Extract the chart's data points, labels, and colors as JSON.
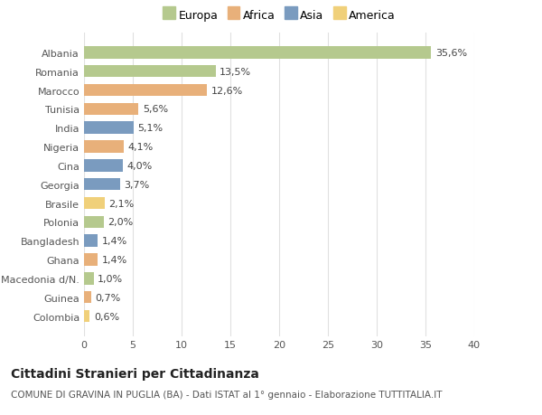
{
  "categories": [
    "Albania",
    "Romania",
    "Marocco",
    "Tunisia",
    "India",
    "Nigeria",
    "Cina",
    "Georgia",
    "Brasile",
    "Polonia",
    "Bangladesh",
    "Ghana",
    "Macedonia d/N.",
    "Guinea",
    "Colombia"
  ],
  "values": [
    35.6,
    13.5,
    12.6,
    5.6,
    5.1,
    4.1,
    4.0,
    3.7,
    2.1,
    2.0,
    1.4,
    1.4,
    1.0,
    0.7,
    0.6
  ],
  "labels": [
    "35,6%",
    "13,5%",
    "12,6%",
    "5,6%",
    "5,1%",
    "4,1%",
    "4,0%",
    "3,7%",
    "2,1%",
    "2,0%",
    "1,4%",
    "1,4%",
    "1,0%",
    "0,7%",
    "0,6%"
  ],
  "continents": [
    "Europa",
    "Europa",
    "Africa",
    "Africa",
    "Asia",
    "Africa",
    "Asia",
    "Asia",
    "America",
    "Europa",
    "Asia",
    "Africa",
    "Europa",
    "Africa",
    "America"
  ],
  "continent_colors": {
    "Europa": "#b5c98e",
    "Africa": "#e8b07a",
    "Asia": "#7a9bbf",
    "America": "#f0d07a"
  },
  "legend_entries": [
    "Europa",
    "Africa",
    "Asia",
    "America"
  ],
  "legend_colors": [
    "#b5c98e",
    "#e8b07a",
    "#7a9bbf",
    "#f0d07a"
  ],
  "xlim": [
    0,
    40
  ],
  "xticks": [
    0,
    5,
    10,
    15,
    20,
    25,
    30,
    35,
    40
  ],
  "title": "Cittadini Stranieri per Cittadinanza",
  "subtitle": "COMUNE DI GRAVINA IN PUGLIA (BA) - Dati ISTAT al 1° gennaio - Elaborazione TUTTITALIA.IT",
  "background_color": "#ffffff",
  "plot_bg_color": "#ffffff",
  "grid_color": "#e0e0e0",
  "bar_height": 0.65,
  "title_fontsize": 10,
  "subtitle_fontsize": 7.5,
  "tick_fontsize": 8,
  "value_fontsize": 8
}
